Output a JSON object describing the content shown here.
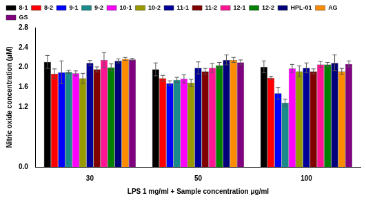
{
  "chart_data": {
    "type": "bar",
    "x_label": "LPS 1 mg/ml + Sample concentration μg/ml",
    "y_label": "Nitric oxide concentration (μM)",
    "categories": [
      "30",
      "50",
      "100"
    ],
    "series": [
      {
        "name": "8-1",
        "color": "#000000",
        "values": [
          2.11,
          1.96,
          2.01
        ],
        "errors": [
          0.13,
          0.13,
          0.12
        ]
      },
      {
        "name": "8-2",
        "color": "#ff0000",
        "values": [
          1.87,
          1.78,
          1.79
        ],
        "errors": [
          0.1,
          0.06,
          0.03
        ]
      },
      {
        "name": "9-1",
        "color": "#0000ff",
        "values": [
          1.9,
          1.68,
          1.48
        ],
        "errors": [
          0.23,
          0.05,
          0.12
        ]
      },
      {
        "name": "9-2",
        "color": "#1a8a8a",
        "values": [
          1.91,
          1.75,
          1.29
        ],
        "errors": [
          0.03,
          0.05,
          0.07
        ]
      },
      {
        "name": "10-1",
        "color": "#ff00ff",
        "values": [
          1.88,
          1.77,
          1.98
        ],
        "errors": [
          0.05,
          0.08,
          0.08
        ]
      },
      {
        "name": "10-2",
        "color": "#999900",
        "values": [
          1.78,
          1.69,
          1.92
        ],
        "errors": [
          0.1,
          0.07,
          0.11
        ]
      },
      {
        "name": "11-1",
        "color": "#000099",
        "values": [
          2.09,
          1.99,
          1.99
        ],
        "errors": [
          0.05,
          0.12,
          0.1
        ]
      },
      {
        "name": "11-2",
        "color": "#800000",
        "values": [
          1.96,
          1.92,
          1.92
        ],
        "errors": [
          0.05,
          0.06,
          0.05
        ]
      },
      {
        "name": "12-1",
        "color": "#ff1493",
        "values": [
          2.15,
          1.99,
          2.06
        ],
        "errors": [
          0.15,
          0.09,
          0.06
        ]
      },
      {
        "name": "12-2",
        "color": "#008000",
        "values": [
          2.0,
          2.04,
          2.06
        ],
        "errors": [
          0.07,
          0.06,
          0.04
        ]
      },
      {
        "name": "HPL-01",
        "color": "#00007a",
        "values": [
          2.13,
          2.15,
          2.09
        ],
        "errors": [
          0.04,
          0.1,
          0.16
        ]
      },
      {
        "name": "AG",
        "color": "#ff8c00",
        "values": [
          2.17,
          2.15,
          1.92
        ],
        "errors": [
          0.03,
          0.05,
          0.06
        ]
      },
      {
        "name": "GS",
        "color": "#800080",
        "values": [
          2.16,
          2.1,
          2.07
        ],
        "errors": [
          0.02,
          0.05,
          0.06
        ]
      }
    ],
    "ylim": [
      0,
      2.8
    ],
    "yticks": [
      {
        "value": 0,
        "label": "0.0"
      },
      1.2,
      1.6,
      {
        "value": 2,
        "label": "2.0"
      },
      2.4,
      2.8
    ],
    "grid": false,
    "legend": "upper left"
  }
}
